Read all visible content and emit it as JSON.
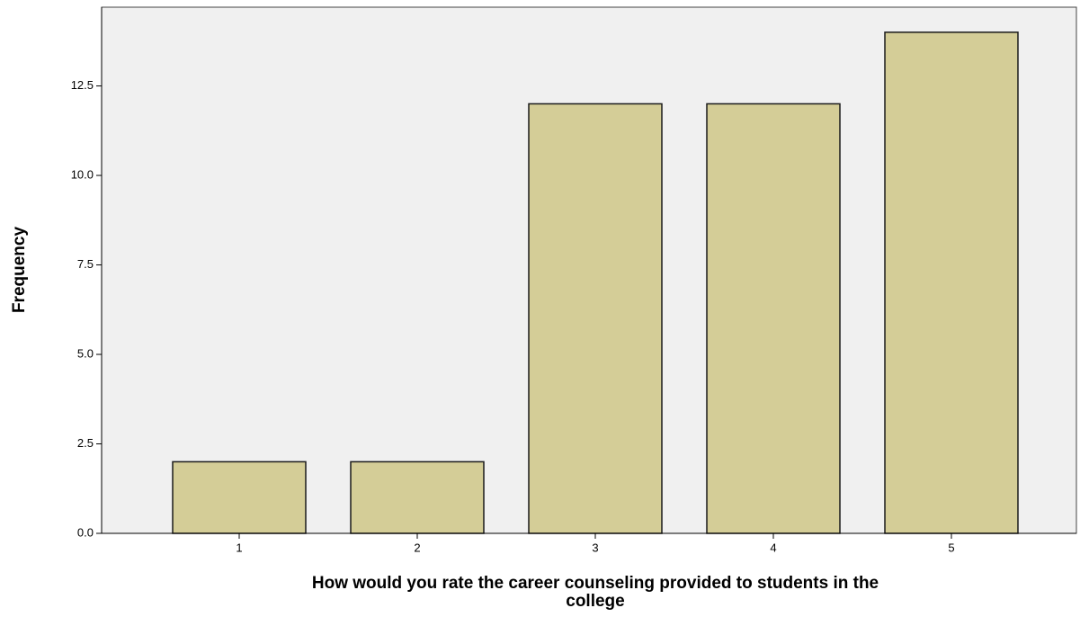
{
  "chart_data": {
    "type": "bar",
    "categories": [
      "1",
      "2",
      "3",
      "4",
      "5"
    ],
    "values": [
      2,
      2,
      12,
      12,
      14
    ],
    "color": "#d4cd97",
    "ylabel": "Frequency",
    "xlabel": [
      "How would you rate the career counseling provided to students in the",
      "college"
    ],
    "ylim": [
      0,
      14.7
    ],
    "yticks": [
      {
        "value": 0,
        "label": "0.0"
      },
      2.5,
      {
        "value": 5,
        "label": "5.0"
      },
      7.5,
      {
        "value": 10,
        "label": "10.0"
      },
      12.5
    ]
  }
}
